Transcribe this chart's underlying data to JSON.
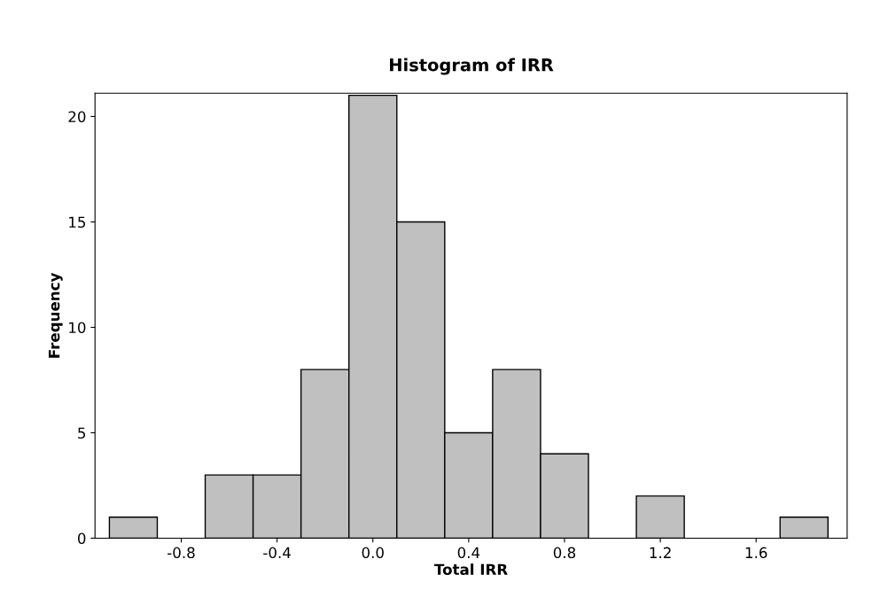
{
  "chart_data": {
    "type": "histogram",
    "title": "Histogram of IRR",
    "xlabel": "Total IRR",
    "ylabel": "Frequency",
    "bins": [
      -1.1,
      -0.9,
      -0.7,
      -0.5,
      -0.3,
      -0.1,
      0.1,
      0.3,
      0.5,
      0.7,
      0.9,
      1.1,
      1.3,
      1.5,
      1.7,
      1.9
    ],
    "values": [
      1,
      0,
      3,
      3,
      8,
      21,
      15,
      5,
      8,
      4,
      0,
      2,
      0,
      0,
      1
    ],
    "color": "#c0c0c0",
    "xlim": [
      -1.16,
      1.98
    ],
    "ylim": [
      0,
      21.1
    ],
    "xticks": [
      {
        "value": -0.8,
        "label": "-0.8"
      },
      {
        "value": -0.4,
        "label": "-0.4"
      },
      {
        "value": 0.0,
        "label": "0.0"
      },
      {
        "value": 0.4,
        "label": "0.4"
      },
      {
        "value": 0.8,
        "label": "0.8"
      },
      {
        "value": 1.2,
        "label": "1.2"
      },
      {
        "value": 1.6,
        "label": "1.6"
      }
    ],
    "yticks": [
      0,
      5,
      10,
      15,
      20
    ],
    "grid": false,
    "legend": false
  }
}
